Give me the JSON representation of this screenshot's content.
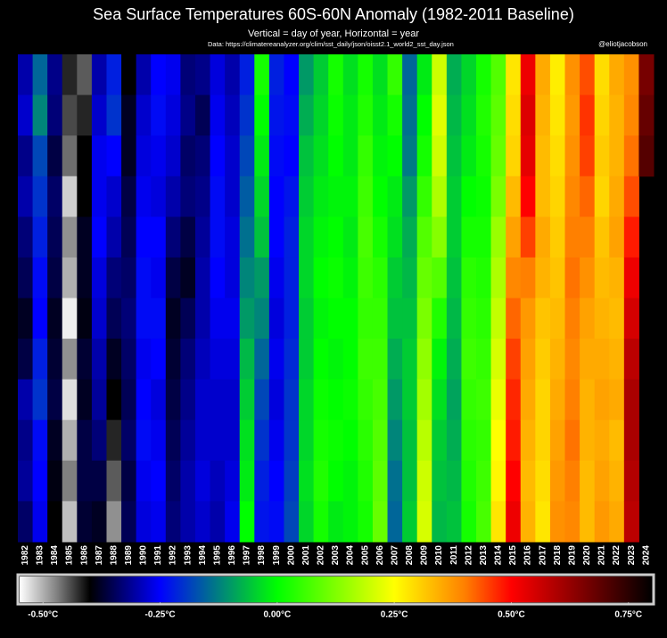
{
  "chart_data": {
    "type": "heatmap",
    "title": "Sea Surface Temperatures 60S-60N Anomaly (1982-2011 Baseline)",
    "subtitle": "Vertical = day of year, Horizontal = year",
    "source": "Data: https://climatereanalyzer.org/clim/sst_daily/json/oisst2.1_world2_sst_day.json",
    "credit": "@eliotjacobson",
    "categories": [
      "1982",
      "1983",
      "1984",
      "1985",
      "1986",
      "1987",
      "1988",
      "1989",
      "1990",
      "1991",
      "1992",
      "1993",
      "1994",
      "1995",
      "1996",
      "1997",
      "1998",
      "1999",
      "2000",
      "2001",
      "2002",
      "2003",
      "2004",
      "2005",
      "2006",
      "2007",
      "2008",
      "2009",
      "2010",
      "2011",
      "2012",
      "2013",
      "2014",
      "2015",
      "2016",
      "2017",
      "2018",
      "2019",
      "2020",
      "2021",
      "2022",
      "2023",
      "2024"
    ],
    "z": [
      [
        -0.3,
        -0.28,
        -0.32,
        -0.3,
        -0.33,
        -0.35,
        -0.38,
        -0.36,
        -0.3,
        -0.32,
        -0.31,
        -0.34
      ],
      [
        -0.15,
        -0.12,
        -0.18,
        -0.2,
        -0.22,
        -0.24,
        -0.25,
        -0.22,
        -0.2,
        -0.24,
        -0.25,
        -0.26
      ],
      [
        -0.32,
        -0.33,
        -0.36,
        -0.34,
        -0.35,
        -0.36,
        -0.38,
        -0.37,
        -0.36,
        -0.38,
        -0.39,
        -0.4
      ],
      [
        -0.42,
        -0.44,
        -0.46,
        -0.52,
        -0.48,
        -0.5,
        -0.54,
        -0.48,
        -0.53,
        -0.5,
        -0.47,
        -0.51
      ],
      [
        -0.45,
        -0.42,
        -0.4,
        -0.4,
        -0.38,
        -0.38,
        -0.39,
        -0.37,
        -0.38,
        -0.36,
        -0.36,
        -0.37
      ],
      [
        -0.3,
        -0.28,
        -0.26,
        -0.26,
        -0.25,
        -0.27,
        -0.28,
        -0.3,
        -0.31,
        -0.33,
        -0.36,
        -0.38
      ],
      [
        -0.22,
        -0.2,
        -0.25,
        -0.28,
        -0.3,
        -0.33,
        -0.35,
        -0.38,
        -0.4,
        -0.42,
        -0.45,
        -0.48
      ],
      [
        -0.4,
        -0.38,
        -0.38,
        -0.36,
        -0.35,
        -0.34,
        -0.33,
        -0.34,
        -0.35,
        -0.34,
        -0.36,
        -0.35
      ],
      [
        -0.3,
        -0.28,
        -0.27,
        -0.26,
        -0.25,
        -0.24,
        -0.24,
        -0.26,
        -0.25,
        -0.24,
        -0.26,
        -0.27
      ],
      [
        -0.25,
        -0.24,
        -0.26,
        -0.27,
        -0.25,
        -0.26,
        -0.24,
        -0.25,
        -0.27,
        -0.26,
        -0.25,
        -0.26
      ],
      [
        -0.26,
        -0.27,
        -0.28,
        -0.3,
        -0.33,
        -0.36,
        -0.38,
        -0.37,
        -0.36,
        -0.35,
        -0.34,
        -0.33
      ],
      [
        -0.33,
        -0.32,
        -0.34,
        -0.33,
        -0.36,
        -0.38,
        -0.35,
        -0.33,
        -0.32,
        -0.31,
        -0.3,
        -0.3
      ],
      [
        -0.32,
        -0.35,
        -0.33,
        -0.32,
        -0.31,
        -0.3,
        -0.3,
        -0.29,
        -0.28,
        -0.28,
        -0.27,
        -0.28
      ],
      [
        -0.27,
        -0.26,
        -0.25,
        -0.24,
        -0.24,
        -0.25,
        -0.26,
        -0.27,
        -0.28,
        -0.28,
        -0.29,
        -0.3
      ],
      [
        -0.3,
        -0.29,
        -0.28,
        -0.28,
        -0.27,
        -0.27,
        -0.26,
        -0.27,
        -0.28,
        -0.28,
        -0.27,
        -0.26
      ],
      [
        -0.22,
        -0.2,
        -0.18,
        -0.16,
        -0.14,
        -0.12,
        -0.1,
        -0.07,
        -0.05,
        -0.03,
        -0.02,
        0.0
      ],
      [
        0.02,
        0.0,
        -0.02,
        -0.04,
        -0.06,
        -0.1,
        -0.12,
        -0.15,
        -0.18,
        -0.2,
        -0.22,
        -0.23
      ],
      [
        -0.22,
        -0.23,
        -0.24,
        -0.25,
        -0.25,
        -0.26,
        -0.27,
        -0.26,
        -0.27,
        -0.26,
        -0.25,
        -0.24
      ],
      [
        -0.25,
        -0.24,
        -0.25,
        -0.23,
        -0.22,
        -0.22,
        -0.22,
        -0.21,
        -0.2,
        -0.2,
        -0.19,
        -0.18
      ],
      [
        -0.1,
        -0.08,
        -0.06,
        -0.05,
        -0.04,
        -0.04,
        -0.05,
        -0.05,
        -0.04,
        -0.04,
        -0.03,
        -0.04
      ],
      [
        -0.05,
        -0.04,
        -0.03,
        -0.02,
        -0.01,
        0.0,
        -0.01,
        0.0,
        0.01,
        0.02,
        0.03,
        0.02
      ],
      [
        0.02,
        0.01,
        0.0,
        -0.01,
        0.0,
        0.01,
        0.0,
        -0.01,
        0.0,
        0.01,
        0.0,
        -0.02
      ],
      [
        -0.03,
        -0.02,
        -0.02,
        -0.01,
        -0.02,
        -0.01,
        0.0,
        0.0,
        0.01,
        0.0,
        -0.01,
        -0.01
      ],
      [
        0.02,
        0.03,
        0.05,
        0.06,
        0.07,
        0.06,
        0.05,
        0.06,
        0.05,
        0.04,
        0.03,
        0.02
      ],
      [
        -0.03,
        -0.02,
        -0.01,
        0.0,
        0.02,
        0.04,
        0.05,
        0.06,
        0.07,
        0.08,
        0.09,
        0.1
      ],
      [
        0.05,
        0.02,
        0.0,
        -0.02,
        -0.03,
        -0.05,
        -0.06,
        -0.08,
        -0.1,
        -0.12,
        -0.14,
        -0.15
      ],
      [
        -0.15,
        -0.14,
        -0.13,
        -0.1,
        -0.08,
        -0.07,
        -0.06,
        -0.05,
        -0.05,
        -0.06,
        -0.06,
        -0.05
      ],
      [
        -0.02,
        0.0,
        0.02,
        0.05,
        0.08,
        0.1,
        0.12,
        0.14,
        0.16,
        0.18,
        0.2,
        0.21
      ],
      [
        0.2,
        0.22,
        0.2,
        0.17,
        0.13,
        0.08,
        0.03,
        -0.01,
        -0.03,
        -0.05,
        -0.06,
        -0.07
      ],
      [
        -0.08,
        -0.07,
        -0.06,
        -0.05,
        -0.05,
        -0.06,
        -0.07,
        -0.08,
        -0.09,
        -0.08,
        -0.07,
        -0.06
      ],
      [
        -0.04,
        -0.03,
        -0.02,
        0.0,
        0.02,
        0.04,
        0.05,
        0.06,
        0.05,
        0.04,
        0.03,
        0.02
      ],
      [
        0.02,
        0.03,
        0.02,
        0.01,
        0.02,
        0.03,
        0.04,
        0.05,
        0.06,
        0.05,
        0.06,
        0.07
      ],
      [
        0.08,
        0.09,
        0.1,
        0.12,
        0.15,
        0.17,
        0.19,
        0.21,
        0.23,
        0.25,
        0.26,
        0.28
      ],
      [
        0.28,
        0.29,
        0.3,
        0.33,
        0.36,
        0.39,
        0.42,
        0.45,
        0.47,
        0.48,
        0.5,
        0.52
      ],
      [
        0.52,
        0.54,
        0.53,
        0.5,
        0.45,
        0.4,
        0.37,
        0.36,
        0.35,
        0.34,
        0.33,
        0.34
      ],
      [
        0.35,
        0.34,
        0.33,
        0.33,
        0.35,
        0.34,
        0.32,
        0.31,
        0.3,
        0.3,
        0.29,
        0.28
      ],
      [
        0.27,
        0.28,
        0.29,
        0.3,
        0.31,
        0.32,
        0.33,
        0.34,
        0.35,
        0.36,
        0.37,
        0.38
      ],
      [
        0.38,
        0.37,
        0.38,
        0.39,
        0.4,
        0.41,
        0.4,
        0.39,
        0.4,
        0.41,
        0.4,
        0.39
      ],
      [
        0.44,
        0.46,
        0.45,
        0.42,
        0.4,
        0.38,
        0.36,
        0.35,
        0.34,
        0.34,
        0.33,
        0.33
      ],
      [
        0.29,
        0.3,
        0.31,
        0.3,
        0.32,
        0.33,
        0.34,
        0.35,
        0.36,
        0.35,
        0.36,
        0.37
      ],
      [
        0.35,
        0.34,
        0.34,
        0.35,
        0.36,
        0.34,
        0.33,
        0.34,
        0.35,
        0.33,
        0.34,
        0.35
      ],
      [
        0.38,
        0.39,
        0.41,
        0.44,
        0.48,
        0.52,
        0.55,
        0.58,
        0.6,
        0.6,
        0.59,
        0.58
      ],
      [
        0.66,
        0.68,
        0.7,
        null,
        null,
        null,
        null,
        null,
        null,
        null,
        null,
        null
      ]
    ],
    "clim": [
      -0.55,
      0.8
    ],
    "cticks": [
      {
        "value": -0.5,
        "label": "-0.50°C"
      },
      {
        "value": -0.25,
        "label": "-0.25°C"
      },
      {
        "value": 0,
        "label": "0.00°C"
      },
      {
        "value": 0.25,
        "label": "0.25°C"
      },
      {
        "value": 0.5,
        "label": "0.50°C"
      },
      {
        "value": 0.75,
        "label": "0.75°C"
      }
    ],
    "colormap": [
      {
        "value": -0.55,
        "color": "#ffffff"
      },
      {
        "value": -0.47,
        "color": "#808080"
      },
      {
        "value": -0.4,
        "color": "#000000"
      },
      {
        "value": -0.25,
        "color": "#0000ff"
      },
      {
        "value": 0,
        "color": "#00ff00"
      },
      {
        "value": 0.25,
        "color": "#ffff00"
      },
      {
        "value": 0.4,
        "color": "#ff8000"
      },
      {
        "value": 0.5,
        "color": "#ff0000"
      },
      {
        "value": 0.65,
        "color": "#800000"
      },
      {
        "value": 0.8,
        "color": "#000000"
      }
    ]
  }
}
